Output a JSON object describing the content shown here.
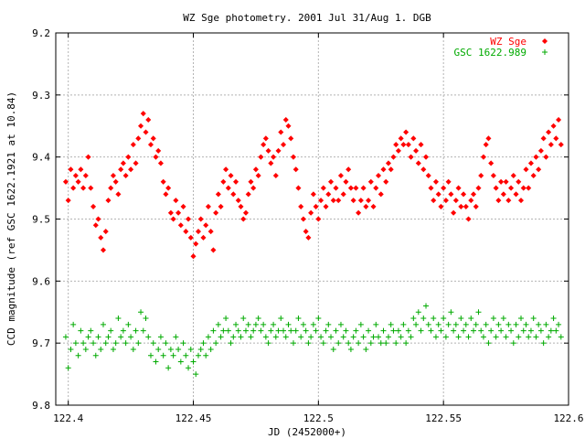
{
  "chart_data": {
    "type": "scatter",
    "title": "WZ Sge photometry. 2001 Jul 31/Aug 1. DGB",
    "xlabel": "JD (2452000+)",
    "ylabel": "CCD magnitude (ref GSC 1622.1921 at 10.84)",
    "xlim": [
      122.395,
      122.6
    ],
    "ylim": [
      9.2,
      9.8
    ],
    "y_inverted": true,
    "grid": true,
    "legend_position": "top-right",
    "x_ticks": [
      "122.4",
      "122.45",
      "122.5",
      "122.55",
      "122.6"
    ],
    "y_ticks": [
      "9.2",
      "9.3",
      "9.4",
      "9.5",
      "9.6",
      "9.7",
      "9.8"
    ],
    "series": [
      {
        "name": "WZ Sge",
        "marker": "diamond",
        "color": "#ff0000",
        "x": [
          122.399,
          122.4,
          122.401,
          122.402,
          122.403,
          122.404,
          122.405,
          122.406,
          122.407,
          122.408,
          122.409,
          122.41,
          122.411,
          122.412,
          122.413,
          122.414,
          122.415,
          122.416,
          122.417,
          122.418,
          122.419,
          122.42,
          122.421,
          122.422,
          122.423,
          122.424,
          122.425,
          122.426,
          122.427,
          122.428,
          122.429,
          122.43,
          122.431,
          122.432,
          122.433,
          122.434,
          122.435,
          122.436,
          122.437,
          122.438,
          122.439,
          122.44,
          122.441,
          122.442,
          122.443,
          122.444,
          122.445,
          122.446,
          122.447,
          122.448,
          122.449,
          122.45,
          122.451,
          122.452,
          122.453,
          122.454,
          122.455,
          122.456,
          122.457,
          122.458,
          122.459,
          122.46,
          122.461,
          122.462,
          122.463,
          122.464,
          122.465,
          122.466,
          122.467,
          122.468,
          122.469,
          122.47,
          122.471,
          122.472,
          122.473,
          122.474,
          122.475,
          122.476,
          122.477,
          122.478,
          122.479,
          122.48,
          122.481,
          122.482,
          122.483,
          122.484,
          122.485,
          122.486,
          122.487,
          122.488,
          122.489,
          122.49,
          122.491,
          122.492,
          122.493,
          122.494,
          122.495,
          122.496,
          122.497,
          122.498,
          122.499,
          122.5,
          122.501,
          122.502,
          122.503,
          122.504,
          122.505,
          122.506,
          122.507,
          122.508,
          122.509,
          122.51,
          122.511,
          122.512,
          122.513,
          122.514,
          122.515,
          122.516,
          122.517,
          122.518,
          122.519,
          122.52,
          122.521,
          122.522,
          122.523,
          122.524,
          122.525,
          122.526,
          122.527,
          122.528,
          122.529,
          122.53,
          122.531,
          122.532,
          122.533,
          122.534,
          122.535,
          122.536,
          122.537,
          122.538,
          122.539,
          122.54,
          122.541,
          122.542,
          122.543,
          122.544,
          122.545,
          122.546,
          122.547,
          122.548,
          122.549,
          122.55,
          122.551,
          122.552,
          122.553,
          122.554,
          122.555,
          122.556,
          122.557,
          122.558,
          122.559,
          122.56,
          122.561,
          122.562,
          122.563,
          122.564,
          122.565,
          122.566,
          122.567,
          122.568,
          122.569,
          122.57,
          122.571,
          122.572,
          122.573,
          122.574,
          122.575,
          122.576,
          122.577,
          122.578,
          122.579,
          122.58,
          122.581,
          122.582,
          122.583,
          122.584,
          122.585,
          122.586,
          122.587,
          122.588,
          122.589,
          122.59,
          122.591,
          122.592,
          122.593,
          122.594,
          122.595,
          122.596,
          122.597
        ],
        "y": [
          9.44,
          9.47,
          9.42,
          9.45,
          9.43,
          9.44,
          9.42,
          9.45,
          9.43,
          9.4,
          9.45,
          9.48,
          9.51,
          9.5,
          9.53,
          9.55,
          9.52,
          9.47,
          9.45,
          9.43,
          9.44,
          9.46,
          9.42,
          9.41,
          9.43,
          9.4,
          9.42,
          9.38,
          9.41,
          9.37,
          9.35,
          9.33,
          9.36,
          9.34,
          9.38,
          9.37,
          9.4,
          9.39,
          9.41,
          9.44,
          9.46,
          9.45,
          9.49,
          9.5,
          9.47,
          9.49,
          9.51,
          9.48,
          9.52,
          9.5,
          9.53,
          9.56,
          9.54,
          9.52,
          9.5,
          9.53,
          9.51,
          9.48,
          9.52,
          9.55,
          9.49,
          9.46,
          9.48,
          9.44,
          9.42,
          9.45,
          9.43,
          9.46,
          9.44,
          9.47,
          9.48,
          9.5,
          9.49,
          9.46,
          9.44,
          9.45,
          9.42,
          9.43,
          9.4,
          9.38,
          9.37,
          9.39,
          9.41,
          9.4,
          9.43,
          9.39,
          9.36,
          9.38,
          9.34,
          9.35,
          9.37,
          9.4,
          9.42,
          9.45,
          9.48,
          9.5,
          9.52,
          9.53,
          9.49,
          9.46,
          9.48,
          9.5,
          9.47,
          9.45,
          9.48,
          9.46,
          9.44,
          9.47,
          9.45,
          9.47,
          9.43,
          9.46,
          9.44,
          9.42,
          9.45,
          9.47,
          9.45,
          9.49,
          9.47,
          9.45,
          9.48,
          9.47,
          9.44,
          9.48,
          9.45,
          9.43,
          9.46,
          9.42,
          9.44,
          9.41,
          9.42,
          9.4,
          9.38,
          9.39,
          9.37,
          9.38,
          9.36,
          9.38,
          9.4,
          9.37,
          9.39,
          9.41,
          9.38,
          9.42,
          9.4,
          9.43,
          9.45,
          9.47,
          9.44,
          9.46,
          9.48,
          9.45,
          9.47,
          9.44,
          9.46,
          9.49,
          9.47,
          9.45,
          9.48,
          9.46,
          9.48,
          9.5,
          9.47,
          9.46,
          9.48,
          9.45,
          9.43,
          9.4,
          9.38,
          9.37,
          9.41,
          9.43,
          9.45,
          9.47,
          9.44,
          9.46,
          9.44,
          9.47,
          9.45,
          9.43,
          9.46,
          9.44,
          9.47,
          9.45,
          9.42,
          9.45,
          9.41,
          9.43,
          9.4,
          9.42,
          9.39,
          9.37,
          9.4,
          9.36,
          9.38,
          9.35,
          9.37,
          9.34,
          9.38
        ]
      },
      {
        "name": "GSC 1622.989",
        "marker": "plus",
        "color": "#00aa00",
        "x": [
          122.399,
          122.4,
          122.401,
          122.402,
          122.403,
          122.404,
          122.405,
          122.406,
          122.407,
          122.408,
          122.409,
          122.41,
          122.411,
          122.412,
          122.413,
          122.414,
          122.415,
          122.416,
          122.417,
          122.418,
          122.419,
          122.42,
          122.421,
          122.422,
          122.423,
          122.424,
          122.425,
          122.426,
          122.427,
          122.428,
          122.429,
          122.43,
          122.431,
          122.432,
          122.433,
          122.434,
          122.435,
          122.436,
          122.437,
          122.438,
          122.439,
          122.44,
          122.441,
          122.442,
          122.443,
          122.444,
          122.445,
          122.446,
          122.447,
          122.448,
          122.449,
          122.45,
          122.451,
          122.452,
          122.453,
          122.454,
          122.455,
          122.456,
          122.457,
          122.458,
          122.459,
          122.46,
          122.461,
          122.462,
          122.463,
          122.464,
          122.465,
          122.466,
          122.467,
          122.468,
          122.469,
          122.47,
          122.471,
          122.472,
          122.473,
          122.474,
          122.475,
          122.476,
          122.477,
          122.478,
          122.479,
          122.48,
          122.481,
          122.482,
          122.483,
          122.484,
          122.485,
          122.486,
          122.487,
          122.488,
          122.489,
          122.49,
          122.491,
          122.492,
          122.493,
          122.494,
          122.495,
          122.496,
          122.497,
          122.498,
          122.499,
          122.5,
          122.501,
          122.502,
          122.503,
          122.504,
          122.505,
          122.506,
          122.507,
          122.508,
          122.509,
          122.51,
          122.511,
          122.512,
          122.513,
          122.514,
          122.515,
          122.516,
          122.517,
          122.518,
          122.519,
          122.52,
          122.521,
          122.522,
          122.523,
          122.524,
          122.525,
          122.526,
          122.527,
          122.528,
          122.529,
          122.53,
          122.531,
          122.532,
          122.533,
          122.534,
          122.535,
          122.536,
          122.537,
          122.538,
          122.539,
          122.54,
          122.541,
          122.542,
          122.543,
          122.544,
          122.545,
          122.546,
          122.547,
          122.548,
          122.549,
          122.55,
          122.551,
          122.552,
          122.553,
          122.554,
          122.555,
          122.556,
          122.557,
          122.558,
          122.559,
          122.56,
          122.561,
          122.562,
          122.563,
          122.564,
          122.565,
          122.566,
          122.567,
          122.568,
          122.569,
          122.57,
          122.571,
          122.572,
          122.573,
          122.574,
          122.575,
          122.576,
          122.577,
          122.578,
          122.579,
          122.58,
          122.581,
          122.582,
          122.583,
          122.584,
          122.585,
          122.586,
          122.587,
          122.588,
          122.589,
          122.59,
          122.591,
          122.592,
          122.593,
          122.594,
          122.595,
          122.596,
          122.597
        ],
        "y": [
          9.69,
          9.74,
          9.71,
          9.67,
          9.7,
          9.72,
          9.68,
          9.7,
          9.71,
          9.69,
          9.68,
          9.7,
          9.72,
          9.69,
          9.71,
          9.67,
          9.7,
          9.69,
          9.68,
          9.71,
          9.7,
          9.66,
          9.69,
          9.68,
          9.7,
          9.67,
          9.69,
          9.71,
          9.68,
          9.7,
          9.65,
          9.68,
          9.66,
          9.69,
          9.72,
          9.7,
          9.73,
          9.71,
          9.69,
          9.72,
          9.7,
          9.74,
          9.71,
          9.72,
          9.69,
          9.71,
          9.73,
          9.7,
          9.72,
          9.74,
          9.71,
          9.73,
          9.75,
          9.72,
          9.71,
          9.7,
          9.72,
          9.69,
          9.71,
          9.68,
          9.7,
          9.67,
          9.69,
          9.68,
          9.66,
          9.68,
          9.7,
          9.69,
          9.67,
          9.68,
          9.69,
          9.66,
          9.68,
          9.67,
          9.69,
          9.68,
          9.67,
          9.66,
          9.68,
          9.67,
          9.69,
          9.7,
          9.68,
          9.67,
          9.69,
          9.68,
          9.66,
          9.68,
          9.69,
          9.67,
          9.68,
          9.7,
          9.68,
          9.66,
          9.69,
          9.67,
          9.68,
          9.7,
          9.69,
          9.67,
          9.68,
          9.66,
          9.69,
          9.7,
          9.68,
          9.67,
          9.69,
          9.71,
          9.68,
          9.7,
          9.67,
          9.69,
          9.68,
          9.7,
          9.71,
          9.69,
          9.68,
          9.7,
          9.67,
          9.69,
          9.71,
          9.68,
          9.7,
          9.69,
          9.67,
          9.69,
          9.7,
          9.68,
          9.7,
          9.69,
          9.67,
          9.68,
          9.7,
          9.68,
          9.69,
          9.67,
          9.7,
          9.68,
          9.69,
          9.66,
          9.67,
          9.65,
          9.68,
          9.66,
          9.64,
          9.67,
          9.68,
          9.66,
          9.69,
          9.67,
          9.68,
          9.66,
          9.69,
          9.67,
          9.65,
          9.68,
          9.67,
          9.69,
          9.66,
          9.68,
          9.67,
          9.69,
          9.66,
          9.68,
          9.67,
          9.65,
          9.68,
          9.69,
          9.67,
          9.7,
          9.68,
          9.66,
          9.69,
          9.67,
          9.68,
          9.66,
          9.69,
          9.67,
          9.68,
          9.7,
          9.67,
          9.69,
          9.66,
          9.68,
          9.67,
          9.69,
          9.68,
          9.66,
          9.69,
          9.67,
          9.68,
          9.7,
          9.67,
          9.69,
          9.68,
          9.66,
          9.68,
          9.67,
          9.69
        ]
      }
    ]
  }
}
